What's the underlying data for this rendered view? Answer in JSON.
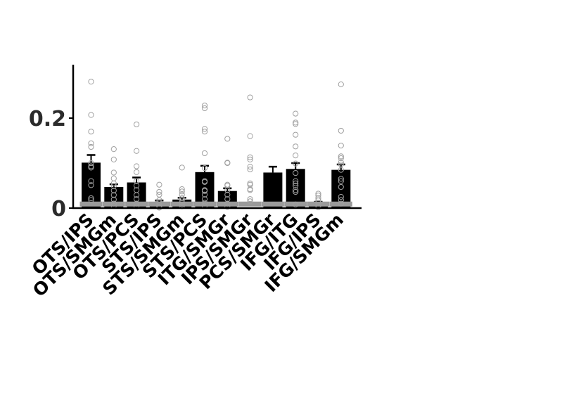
{
  "chart_data": {
    "type": "bar",
    "title": "",
    "xlabel": "",
    "ylabel": "",
    "ylim": [
      0,
      0.32
    ],
    "yticks": [
      0,
      0.2
    ],
    "ytick_labels": [
      "0",
      "0.2"
    ],
    "grid": false,
    "legend": "none",
    "categories": [
      "OTS/IPS",
      "OTS/SMGm",
      "OTS/PCS",
      "STS/IPS",
      "STS/SMGm",
      "STS/PCS",
      "ITG/SMGr",
      "IPS/SMGr",
      "PCS/SMGr",
      "IFG/ITG",
      "IFG/IPS",
      "IFG/SMGm"
    ],
    "values": [
      0.101,
      0.047,
      0.057,
      0.013,
      0.019,
      0.08,
      0.038,
      0.0,
      0.079,
      0.087,
      0.012,
      0.085
    ],
    "errors": [
      0.017,
      0.006,
      0.011,
      0.004,
      0.004,
      0.014,
      0.006,
      0.0,
      0.013,
      0.013,
      0.002,
      0.012
    ],
    "chance_levels": [
      0.009,
      0.009,
      0.009,
      0.009,
      0.009,
      0.009,
      0.009,
      0.009,
      0.009,
      0.009,
      0.009,
      0.009
    ],
    "points": [
      [
        0.281,
        0.207,
        0.17,
        0.144,
        0.136,
        0.1,
        0.093,
        0.09,
        0.06,
        0.051,
        0.022,
        0.018
      ],
      [
        0.131,
        0.108,
        0.079,
        0.066,
        0.055,
        0.049,
        0.039,
        0.029,
        0.019,
        0.01,
        0.005
      ],
      [
        0.186,
        0.127,
        0.093,
        0.08,
        0.06,
        0.05,
        0.04,
        0.029,
        0.02,
        0.01,
        0.004
      ],
      [
        0.052,
        0.036,
        0.03,
        0.018,
        0.012,
        0.006,
        0.003,
        0.001
      ],
      [
        0.09,
        0.042,
        0.037,
        0.03,
        0.022,
        0.018,
        0.012,
        0.008,
        0.004
      ],
      [
        0.228,
        0.222,
        0.176,
        0.17,
        0.122,
        0.089,
        0.06,
        0.058,
        0.04,
        0.038,
        0.03,
        0.02,
        0.012,
        0.005
      ],
      [
        0.154,
        0.101,
        0.1,
        0.052,
        0.05,
        0.04,
        0.03,
        0.02,
        0.01,
        0.003
      ],
      [
        0.246,
        0.16,
        0.113,
        0.108,
        0.092,
        0.086,
        0.055,
        0.052,
        0.042,
        0.04,
        0.02,
        0.015
      ],
      [],
      [
        0.21,
        0.19,
        0.187,
        0.163,
        0.137,
        0.117,
        0.099,
        0.078,
        0.06,
        0.055,
        0.05,
        0.04,
        0.036,
        0.008
      ],
      [
        0.032,
        0.028,
        0.022,
        0.017,
        0.012,
        0.006,
        0.002
      ],
      [
        0.275,
        0.172,
        0.139,
        0.115,
        0.111,
        0.102,
        0.097,
        0.085,
        0.065,
        0.06,
        0.047,
        0.025,
        0.018,
        0.01
      ]
    ],
    "colors": {
      "bar": "#000000",
      "chance": "#9a9a9a",
      "points": "#a0a0a0",
      "axis": "#000000",
      "text": "#2b2b2b"
    }
  }
}
